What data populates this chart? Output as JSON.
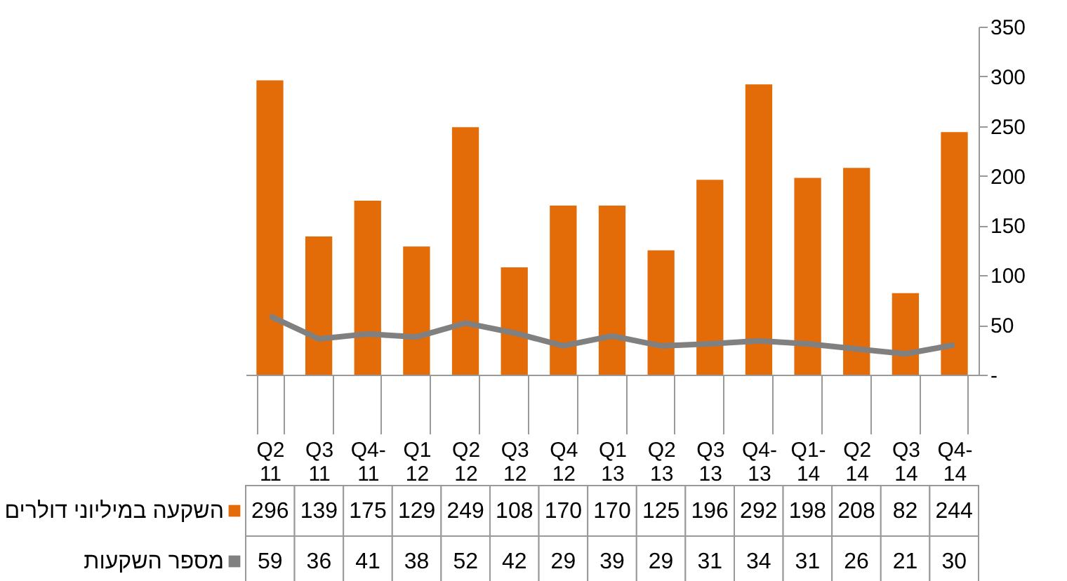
{
  "chart_data": {
    "type": "bar",
    "categories": [
      "Q2 11",
      "Q3 11",
      "Q4- 11",
      "Q1 12",
      "Q2 12",
      "Q3 12",
      "Q4 12",
      "Q1 13",
      "Q2 13",
      "Q3 13",
      "Q4- 13",
      "Q1- 14",
      "Q2 14",
      "Q3 14",
      "Q4- 14"
    ],
    "series": [
      {
        "name": "השקעה במיליוני דולרים",
        "color": "#e36c09",
        "values": [
          296,
          139,
          175,
          129,
          249,
          108,
          170,
          170,
          125,
          196,
          292,
          198,
          208,
          82,
          244
        ]
      },
      {
        "name": "מספר   השקעות",
        "type": "line",
        "color": "#808080",
        "values": [
          59,
          36,
          41,
          38,
          52,
          42,
          29,
          39,
          29,
          31,
          34,
          31,
          26,
          21,
          30
        ]
      }
    ],
    "ylim": [
      0,
      350
    ],
    "yticks": [
      {
        "value": 0,
        "label": "-"
      },
      50,
      100,
      150,
      200,
      250,
      300,
      350
    ],
    "data_labels": true,
    "legend": "bottom left",
    "grid": false,
    "marker": "none",
    "line_style": "solid"
  }
}
